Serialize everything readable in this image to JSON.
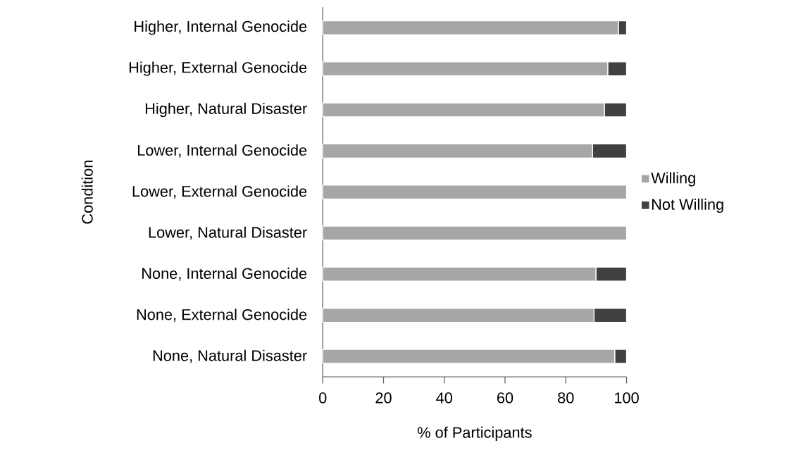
{
  "chart_data": {
    "type": "bar",
    "orientation": "horizontal",
    "stacked": true,
    "xlabel": "% of Participants",
    "ylabel": "Condition",
    "categories": [
      "Higher, Internal Genocide",
      "Higher, External Genocide",
      "Higher, Natural Disaster",
      "Lower, Internal Genocide",
      "Lower, External Genocide",
      "Lower, Natural Disaster",
      "None, Internal Genocide",
      "None, External Genocide",
      "None, Natural Disaster"
    ],
    "series": [
      {
        "name": "Willing",
        "color": "#a6a6a6",
        "values": [
          97.3,
          93.8,
          92.7,
          88.8,
          100,
          100,
          89.9,
          89.3,
          96.1
        ]
      },
      {
        "name": "Not Willing",
        "color": "#404040",
        "values": [
          2.7,
          6.2,
          7.3,
          11.2,
          0,
          0,
          10.1,
          10.7,
          3.9
        ]
      }
    ],
    "xlim": [
      0,
      100
    ],
    "xticks": [
      0,
      20,
      40,
      60,
      80,
      100
    ],
    "grid": false,
    "legend": "right"
  }
}
